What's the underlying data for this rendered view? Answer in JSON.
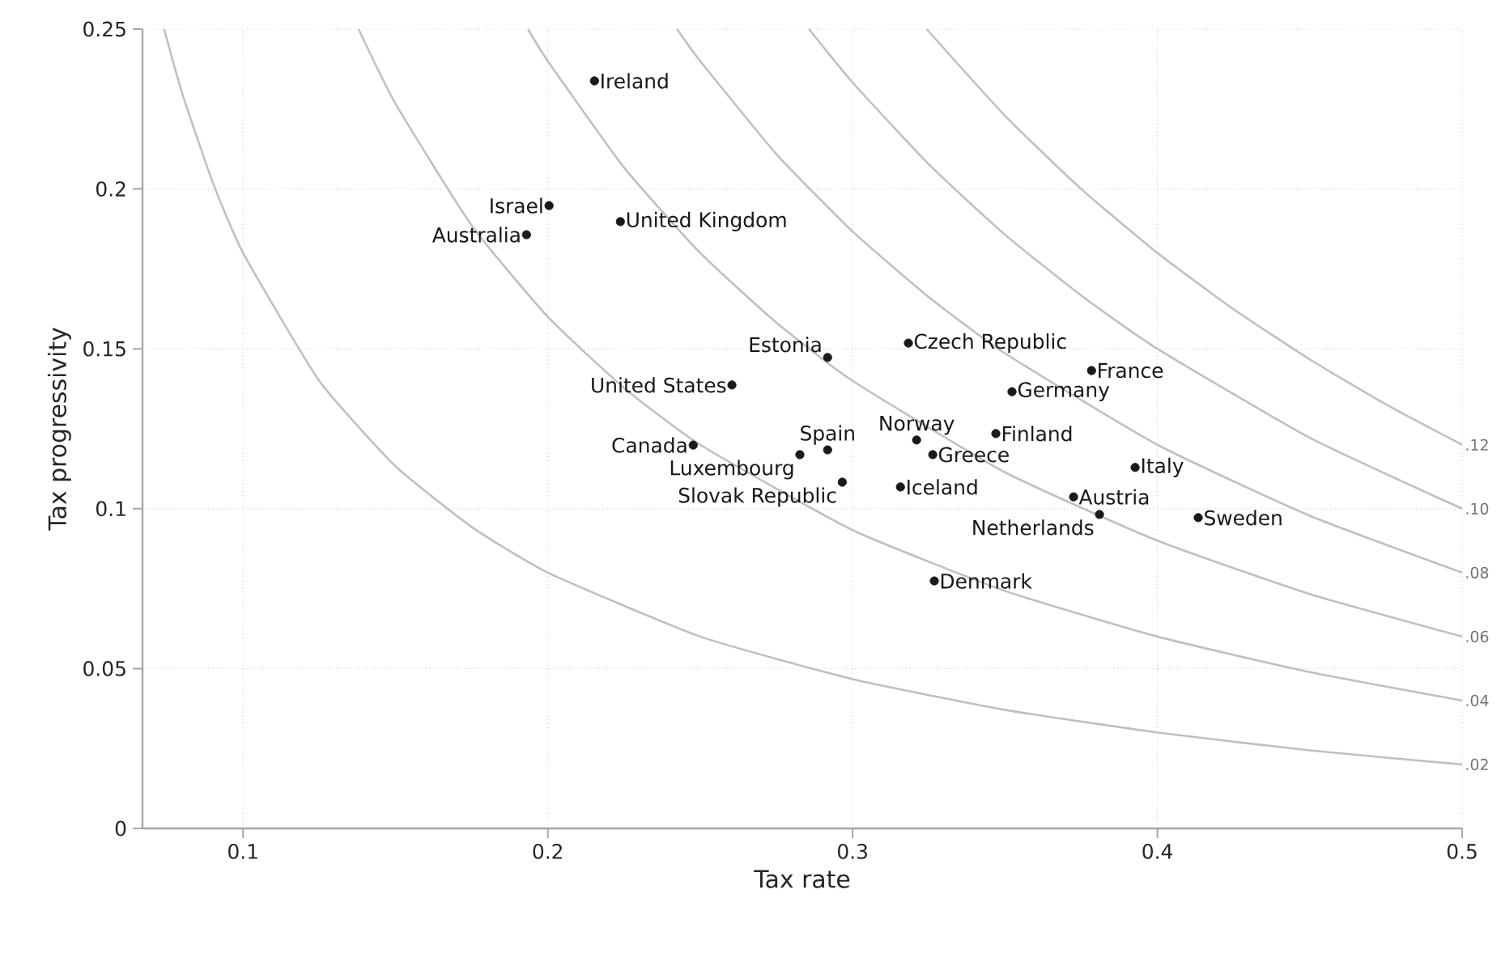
{
  "chart_data": {
    "type": "scatter",
    "xlabel": "Tax rate",
    "ylabel": "Tax progressivity",
    "xlim": [
      0.067,
      0.5
    ],
    "ylim": [
      0,
      0.25
    ],
    "xticks": [
      0.1,
      0.2,
      0.3,
      0.4,
      0.5
    ],
    "yticks": [
      0,
      0.05,
      0.1,
      0.15,
      0.2,
      0.25
    ],
    "grid": true,
    "series": [
      {
        "name": ".02",
        "type": "line",
        "color": "#c0c0c0",
        "x": [
          0.0741,
          0.08,
          0.09,
          0.1,
          0.125,
          0.15,
          0.175,
          0.2,
          0.25,
          0.3,
          0.35,
          0.4,
          0.45,
          0.5
        ],
        "values": [
          0.25,
          0.23,
          0.2022,
          0.18,
          0.14,
          0.1133,
          0.0943,
          0.08,
          0.06,
          0.0467,
          0.0371,
          0.03,
          0.0244,
          0.02
        ]
      },
      {
        "name": ".04",
        "type": "line",
        "color": "#c0c0c0",
        "x": [
          0.1379,
          0.15,
          0.175,
          0.2,
          0.225,
          0.25,
          0.3,
          0.35,
          0.4,
          0.45,
          0.5
        ],
        "values": [
          0.25,
          0.2267,
          0.1886,
          0.16,
          0.1378,
          0.12,
          0.0933,
          0.0743,
          0.06,
          0.0489,
          0.04
        ]
      },
      {
        "name": ".06",
        "type": "line",
        "color": "#c0c0c0",
        "x": [
          0.1935,
          0.2,
          0.225,
          0.25,
          0.275,
          0.3,
          0.35,
          0.4,
          0.45,
          0.5
        ],
        "values": [
          0.25,
          0.24,
          0.2067,
          0.18,
          0.1582,
          0.14,
          0.1114,
          0.09,
          0.0733,
          0.06
        ]
      },
      {
        "name": ".08",
        "type": "line",
        "color": "#c0c0c0",
        "x": [
          0.2424,
          0.25,
          0.275,
          0.3,
          0.325,
          0.35,
          0.4,
          0.45,
          0.5
        ],
        "values": [
          0.25,
          0.24,
          0.2109,
          0.1867,
          0.1662,
          0.1486,
          0.12,
          0.0978,
          0.08
        ]
      },
      {
        "name": ".10",
        "type": "line",
        "color": "#c0c0c0",
        "x": [
          0.2857,
          0.3,
          0.325,
          0.35,
          0.375,
          0.4,
          0.45,
          0.5
        ],
        "values": [
          0.25,
          0.2333,
          0.2077,
          0.1857,
          0.1667,
          0.15,
          0.1222,
          0.1
        ]
      },
      {
        "name": ".12",
        "type": "line",
        "color": "#c0c0c0",
        "x": [
          0.3243,
          0.35,
          0.375,
          0.4,
          0.425,
          0.45,
          0.475,
          0.5
        ],
        "values": [
          0.25,
          0.2229,
          0.2,
          0.18,
          0.1624,
          0.1467,
          0.1326,
          0.12
        ]
      },
      {
        "marker": "circle",
        "color": "#1a1a1a",
        "x": [
          0.2153,
          0.2004,
          0.193,
          0.2238,
          0.2918,
          0.2604,
          0.3183,
          0.3784,
          0.3523,
          0.2477,
          0.2918,
          0.2827,
          0.321,
          0.3263,
          0.347,
          0.2966,
          0.3157,
          0.3927,
          0.3725,
          0.381,
          0.4134,
          0.3268
        ],
        "values": [
          0.2338,
          0.1948,
          0.1857,
          0.1898,
          0.1473,
          0.1387,
          0.1518,
          0.1432,
          0.1366,
          0.1199,
          0.1184,
          0.1169,
          0.1215,
          0.1169,
          0.1235,
          0.1083,
          0.1068,
          0.1129,
          0.1037,
          0.0982,
          0.0972,
          0.0774
        ]
      }
    ],
    "annotations": [
      {
        "text": "Ireland",
        "x": 0.2153,
        "y": 0.2338
      },
      {
        "text": "Israel",
        "x": 0.2004,
        "y": 0.1948
      },
      {
        "text": "Australia",
        "x": 0.193,
        "y": 0.1857
      },
      {
        "text": "United Kingdom",
        "x": 0.2238,
        "y": 0.1898
      },
      {
        "text": "Estonia",
        "x": 0.2918,
        "y": 0.1473
      },
      {
        "text": "United States",
        "x": 0.2604,
        "y": 0.1387
      },
      {
        "text": "Czech Republic",
        "x": 0.3183,
        "y": 0.1518
      },
      {
        "text": "France",
        "x": 0.3784,
        "y": 0.1432
      },
      {
        "text": "Germany",
        "x": 0.3523,
        "y": 0.1366
      },
      {
        "text": "Canada",
        "x": 0.2477,
        "y": 0.1199
      },
      {
        "text": "Spain",
        "x": 0.2918,
        "y": 0.1184
      },
      {
        "text": "Luxembourg",
        "x": 0.2827,
        "y": 0.1169
      },
      {
        "text": "Norway",
        "x": 0.321,
        "y": 0.1215
      },
      {
        "text": "Greece",
        "x": 0.3263,
        "y": 0.1169
      },
      {
        "text": "Finland",
        "x": 0.347,
        "y": 0.1235
      },
      {
        "text": "Slovak Republic",
        "x": 0.2966,
        "y": 0.1083
      },
      {
        "text": "Iceland",
        "x": 0.3157,
        "y": 0.1068
      },
      {
        "text": "Italy",
        "x": 0.3927,
        "y": 0.1129
      },
      {
        "text": "Austria",
        "x": 0.3725,
        "y": 0.1037
      },
      {
        "text": "Netherlands",
        "x": 0.381,
        "y": 0.0982
      },
      {
        "text": "Sweden",
        "x": 0.4134,
        "y": 0.0972
      },
      {
        "text": "Denmark",
        "x": 0.3268,
        "y": 0.0774
      }
    ]
  }
}
